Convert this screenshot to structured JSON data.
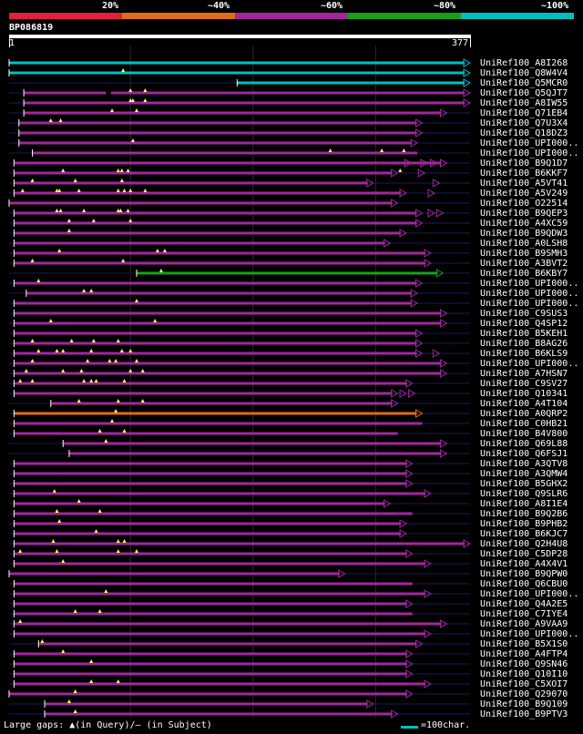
{
  "legend": {
    "labels": [
      "20%",
      "~40%",
      "~60%",
      "~80%",
      "~100%"
    ],
    "colors": [
      "#e0203c",
      "#e06c18",
      "#a0289c",
      "#18a018",
      "#00bfbf"
    ]
  },
  "query": {
    "id": "BP086819",
    "start": "1",
    "end": "377",
    "length": 377
  },
  "footer": {
    "gaps_note": "Large gaps: ▲(in Query)/— (in Subject)",
    "scale_note": "=100char."
  },
  "hits": [
    {
      "label": "UniRef100_A8I268",
      "start": 1,
      "end": 377,
      "color": "#00bfbf",
      "arrow": true
    },
    {
      "label": "UniRef100_Q8W4V4",
      "start": 1,
      "end": 377,
      "color": "#00bfbf",
      "arrow": true,
      "ins": [
        94
      ]
    },
    {
      "label": "UniRef100_Q5MCR0",
      "start": 187,
      "end": 377,
      "color": "#00bfbf",
      "arrow": true
    },
    {
      "label": "UniRef100_Q5QJT7",
      "start": 13,
      "end": 377,
      "color": "#a0289c",
      "arrow": true,
      "ins": [
        100,
        112
      ],
      "gaps": [
        [
          80,
          84
        ]
      ]
    },
    {
      "label": "UniRef100_A8IW55",
      "start": 13,
      "end": 377,
      "color": "#a0289c",
      "arrow": true,
      "ins": [
        100,
        102,
        112
      ]
    },
    {
      "label": "UniRef100_Q71EB4",
      "start": 13,
      "end": 358,
      "color": "#a0289c",
      "arrow": true,
      "ins": [
        85,
        105
      ]
    },
    {
      "label": "UniRef100_Q7U3X4",
      "start": 9,
      "end": 338,
      "color": "#a0289c",
      "arrow": true,
      "ins": [
        35,
        43
      ]
    },
    {
      "label": "UniRef100_Q18DZ3",
      "start": 9,
      "end": 338,
      "color": "#a0289c",
      "arrow": true
    },
    {
      "label": "UniRef100_UPI000..",
      "start": 9,
      "end": 334,
      "color": "#a0289c",
      "arrow": true,
      "ins": [
        102
      ]
    },
    {
      "label": "UniRef100_UPI000..",
      "start": 20,
      "end": 334,
      "color": "#a0289c",
      "arrow": false,
      "ins": [
        263,
        305,
        323
      ]
    },
    {
      "label": "UniRef100_B9Q1D7",
      "start": 5,
      "end": 358,
      "color": "#a0289c",
      "arrow": true,
      "ins": [],
      "multi": [
        329,
        342,
        350
      ]
    },
    {
      "label": "UniRef100_B6KKF7",
      "start": 5,
      "end": 318,
      "color": "#a0289c",
      "arrow": true,
      "ins": [
        45,
        90,
        93,
        98,
        320
      ],
      "multi": [
        340
      ]
    },
    {
      "label": "UniRef100_A5VT41",
      "start": 5,
      "end": 298,
      "color": "#a0289c",
      "arrow": true,
      "ins": [
        20,
        55,
        93
      ],
      "multi": [
        352
      ]
    },
    {
      "label": "UniRef100_A5V249",
      "start": 5,
      "end": 325,
      "color": "#a0289c",
      "arrow": true,
      "ins": [
        12,
        40,
        42,
        58,
        90,
        95,
        100,
        112
      ],
      "multi": [
        348
      ]
    },
    {
      "label": "UniRef100_O22514",
      "start": 1,
      "end": 318,
      "color": "#a0289c",
      "arrow": true
    },
    {
      "label": "UniRef100_B9QEP3",
      "start": 5,
      "end": 338,
      "color": "#a0289c",
      "arrow": true,
      "ins": [
        40,
        43,
        62,
        90,
        92,
        98
      ],
      "multi": [
        348,
        355
      ]
    },
    {
      "label": "UniRef100_A4XC59",
      "start": 5,
      "end": 338,
      "color": "#a0289c",
      "arrow": true,
      "ins": [
        50,
        70,
        100
      ]
    },
    {
      "label": "UniRef100_B9QDW3",
      "start": 5,
      "end": 325,
      "color": "#a0289c",
      "arrow": true,
      "ins": [
        50
      ]
    },
    {
      "label": "UniRef100_A0LSH8",
      "start": 5,
      "end": 312,
      "color": "#a0289c",
      "arrow": true
    },
    {
      "label": "UniRef100_B9SMH3",
      "start": 5,
      "end": 345,
      "color": "#a0289c",
      "arrow": true,
      "ins": [
        42,
        122,
        128
      ]
    },
    {
      "label": "UniRef100_A3BVT2",
      "start": 5,
      "end": 345,
      "color": "#a0289c",
      "arrow": true,
      "ins": [
        20,
        94
      ]
    },
    {
      "label": "UniRef100_B6KBY7",
      "start": 105,
      "end": 355,
      "color": "#18a018",
      "arrow": true,
      "ins": [
        125
      ]
    },
    {
      "label": "UniRef100_UPI000..",
      "start": 5,
      "end": 338,
      "color": "#a0289c",
      "arrow": true,
      "ins": [
        25
      ]
    },
    {
      "label": "UniRef100_UPI000..",
      "start": 15,
      "end": 334,
      "color": "#a0289c",
      "arrow": true,
      "ins": [
        62,
        68
      ]
    },
    {
      "label": "UniRef100_UPI000..",
      "start": 5,
      "end": 334,
      "color": "#a0289c",
      "arrow": true,
      "ins": [
        105
      ]
    },
    {
      "label": "UniRef100_C9SUS3",
      "start": 5,
      "end": 358,
      "color": "#a0289c",
      "arrow": true
    },
    {
      "label": "UniRef100_Q4SP12",
      "start": 5,
      "end": 358,
      "color": "#a0289c",
      "arrow": true,
      "ins": [
        35,
        120
      ]
    },
    {
      "label": "UniRef100_B5KEH1",
      "start": 5,
      "end": 338,
      "color": "#a0289c",
      "arrow": true
    },
    {
      "label": "UniRef100_B8AG26",
      "start": 5,
      "end": 338,
      "color": "#a0289c",
      "arrow": true,
      "ins": [
        20,
        52,
        70,
        90
      ]
    },
    {
      "label": "UniRef100_B6KLS9",
      "start": 5,
      "end": 338,
      "color": "#a0289c",
      "arrow": true,
      "ins": [
        25,
        40,
        45,
        68,
        93,
        100
      ],
      "multi": [
        352
      ]
    },
    {
      "label": "UniRef100_UPI000..",
      "start": 5,
      "end": 358,
      "color": "#a0289c",
      "arrow": true,
      "ins": [
        20,
        65,
        83,
        88,
        105
      ]
    },
    {
      "label": "UniRef100_A7HSN7",
      "start": 5,
      "end": 358,
      "color": "#a0289c",
      "arrow": true,
      "ins": [
        15,
        45,
        60,
        100,
        110
      ]
    },
    {
      "label": "UniRef100_C9SV27",
      "start": 5,
      "end": 330,
      "color": "#a0289c",
      "arrow": true,
      "ins": [
        10,
        20,
        62,
        68,
        72,
        95
      ]
    },
    {
      "label": "UniRef100_Q10341",
      "start": 5,
      "end": 318,
      "color": "#a0289c",
      "arrow": true,
      "multi": [
        325,
        332
      ]
    },
    {
      "label": "UniRef100_A4T104",
      "start": 35,
      "end": 318,
      "color": "#a0289c",
      "arrow": true,
      "ins": [
        58,
        90,
        110
      ]
    },
    {
      "label": "UniRef100_A0QRP2",
      "start": 5,
      "end": 338,
      "color": "#e06c18",
      "arrow": true,
      "ins": [
        88
      ]
    },
    {
      "label": "UniRef100_C0HB21",
      "start": 5,
      "end": 338,
      "color": "#a0289c",
      "arrow": false,
      "ins": [
        85
      ]
    },
    {
      "label": "UniRef100_B4V800",
      "start": 5,
      "end": 318,
      "color": "#a0289c",
      "arrow": false,
      "ins": [
        75,
        95
      ]
    },
    {
      "label": "UniRef100_Q69L88",
      "start": 45,
      "end": 358,
      "color": "#a0289c",
      "arrow": true,
      "ins": [
        80
      ]
    },
    {
      "label": "UniRef100_Q6FSJ1",
      "start": 50,
      "end": 358,
      "color": "#a0289c",
      "arrow": true
    },
    {
      "label": "UniRef100_A3QTV8",
      "start": 5,
      "end": 330,
      "color": "#a0289c",
      "arrow": true
    },
    {
      "label": "UniRef100_A3QMW4",
      "start": 5,
      "end": 330,
      "color": "#a0289c",
      "arrow": true
    },
    {
      "label": "UniRef100_B5GHX2",
      "start": 5,
      "end": 330,
      "color": "#a0289c",
      "arrow": true
    },
    {
      "label": "UniRef100_Q9SLR6",
      "start": 5,
      "end": 345,
      "color": "#a0289c",
      "arrow": true,
      "ins": [
        38
      ]
    },
    {
      "label": "UniRef100_A8I1E4",
      "start": 5,
      "end": 312,
      "color": "#a0289c",
      "arrow": true,
      "ins": [
        58
      ]
    },
    {
      "label": "UniRef100_B9Q2B6",
      "start": 5,
      "end": 330,
      "color": "#a0289c",
      "arrow": false,
      "ins": [
        40,
        75
      ]
    },
    {
      "label": "UniRef100_B9PHB2",
      "start": 5,
      "end": 325,
      "color": "#a0289c",
      "arrow": true,
      "ins": [
        42
      ]
    },
    {
      "label": "UniRef100_B6KJC7",
      "start": 5,
      "end": 325,
      "color": "#a0289c",
      "arrow": true,
      "ins": [
        72
      ]
    },
    {
      "label": "UniRef100_Q2H4U8",
      "start": 5,
      "end": 377,
      "color": "#a0289c",
      "arrow": true,
      "ins": [
        37,
        90,
        95
      ]
    },
    {
      "label": "UniRef100_C5DP28",
      "start": 5,
      "end": 330,
      "color": "#a0289c",
      "arrow": true,
      "ins": [
        10,
        40,
        90,
        105
      ]
    },
    {
      "label": "UniRef100_A4X4V1",
      "start": 5,
      "end": 345,
      "color": "#a0289c",
      "arrow": true,
      "ins": [
        45
      ]
    },
    {
      "label": "UniRef100_B9QPW0",
      "start": 1,
      "end": 275,
      "color": "#a0289c",
      "arrow": true
    },
    {
      "label": "UniRef100_Q6CBU0",
      "start": 5,
      "end": 330,
      "color": "#a0289c",
      "arrow": false
    },
    {
      "label": "UniRef100_UPI000..",
      "start": 5,
      "end": 345,
      "color": "#a0289c",
      "arrow": true,
      "ins": [
        80
      ]
    },
    {
      "label": "UniRef100_Q4A2E5",
      "start": 5,
      "end": 330,
      "color": "#a0289c",
      "arrow": true
    },
    {
      "label": "UniRef100_C7IYE4",
      "start": 5,
      "end": 330,
      "color": "#a0289c",
      "arrow": false,
      "ins": [
        55,
        75
      ]
    },
    {
      "label": "UniRef100_A9VAA9",
      "start": 5,
      "end": 358,
      "color": "#a0289c",
      "arrow": true,
      "ins": [
        10
      ]
    },
    {
      "label": "UniRef100_UPI000..",
      "start": 5,
      "end": 345,
      "color": "#a0289c",
      "arrow": true
    },
    {
      "label": "UniRef100_B5X1S0",
      "start": 25,
      "end": 338,
      "color": "#a0289c",
      "arrow": true,
      "ins": [
        28
      ]
    },
    {
      "label": "UniRef100_A4FTP4",
      "start": 5,
      "end": 330,
      "color": "#a0289c",
      "arrow": true,
      "ins": [
        45
      ]
    },
    {
      "label": "UniRef100_Q9SN46",
      "start": 5,
      "end": 330,
      "color": "#a0289c",
      "arrow": true,
      "ins": [
        68
      ]
    },
    {
      "label": "UniRef100_Q10I10",
      "start": 5,
      "end": 330,
      "color": "#a0289c",
      "arrow": true
    },
    {
      "label": "UniRef100_C5XOI7",
      "start": 5,
      "end": 345,
      "color": "#a0289c",
      "arrow": true,
      "ins": [
        68,
        90
      ]
    },
    {
      "label": "UniRef100_Q29070",
      "start": 1,
      "end": 330,
      "color": "#a0289c",
      "arrow": true,
      "ins": [
        55
      ]
    },
    {
      "label": "UniRef100_B9Q109",
      "start": 30,
      "end": 298,
      "color": "#a0289c",
      "arrow": true,
      "ins": [
        50
      ]
    },
    {
      "label": "UniRef100_B9PTV3",
      "start": 30,
      "end": 318,
      "color": "#a0289c",
      "arrow": true,
      "ins": [
        55
      ]
    }
  ]
}
